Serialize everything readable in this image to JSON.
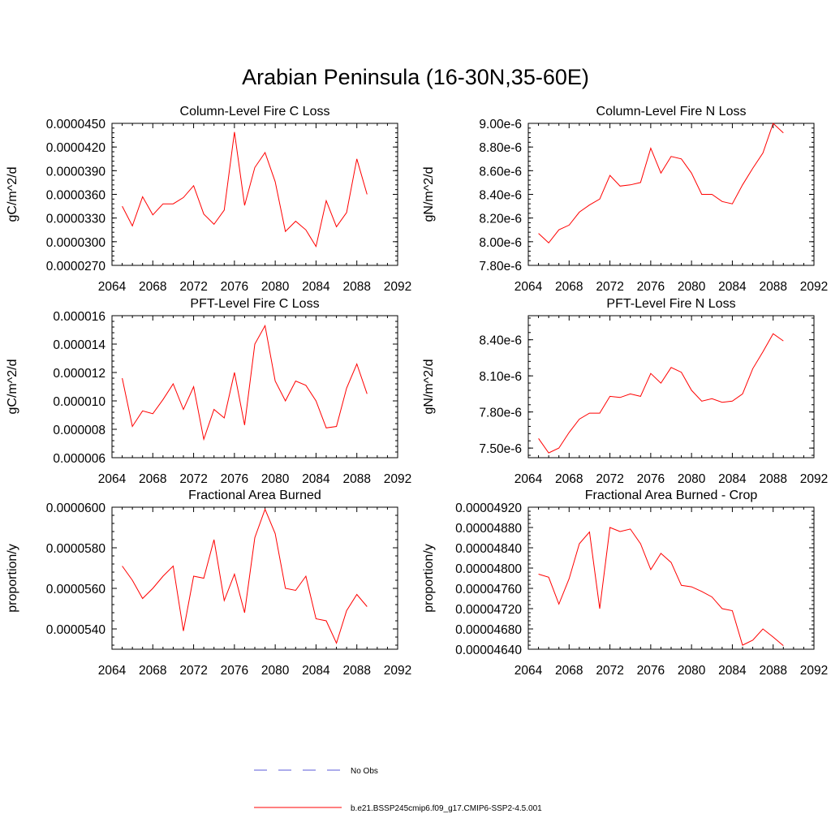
{
  "title": "Arabian Peninsula (16-30N,35-60E)",
  "colors": {
    "series": "#ff0000",
    "no_obs": "#5a5ad8",
    "axis": "#000000"
  },
  "legend": [
    {
      "label": "No Obs",
      "style": "dashed",
      "color": "#5a5ad8"
    },
    {
      "label": "b.e21.BSSP245cmip6.f09_g17.CMIP6-SSP2-4.5.001",
      "style": "solid",
      "color": "#ff0000"
    }
  ],
  "chart_data": [
    {
      "type": "line",
      "title": "Column-Level Fire C Loss",
      "ylabel": "gC/m^2/d",
      "xlim": [
        2064,
        2092
      ],
      "ylim": [
        2.7e-05,
        4.5e-05
      ],
      "xticks": [
        "2064",
        "2068",
        "2072",
        "2076",
        "2080",
        "2084",
        "2088",
        "2092"
      ],
      "yticks": [
        "0.0000270",
        "0.0000300",
        "0.0000330",
        "0.0000360",
        "0.0000390",
        "0.0000420",
        "0.0000450"
      ],
      "series": [
        {
          "x": [
            2065,
            2066,
            2067,
            2068,
            2069,
            2070,
            2071,
            2072,
            2073,
            2074,
            2075,
            2076,
            2077,
            2078,
            2079,
            2080,
            2081,
            2082,
            2083,
            2084,
            2085,
            2086,
            2087,
            2088,
            2089
          ],
          "values": [
            3.45e-05,
            3.2e-05,
            3.57e-05,
            3.34e-05,
            3.48e-05,
            3.48e-05,
            3.56e-05,
            3.71e-05,
            3.35e-05,
            3.22e-05,
            3.4e-05,
            4.39e-05,
            3.46e-05,
            3.94e-05,
            4.13e-05,
            3.76e-05,
            3.13e-05,
            3.26e-05,
            3.15e-05,
            2.94e-05,
            3.52e-05,
            3.19e-05,
            3.37e-05,
            4.05e-05,
            3.6e-05
          ]
        }
      ]
    },
    {
      "type": "line",
      "title": "Column-Level Fire N Loss",
      "ylabel": "gN/m^2/d",
      "xlim": [
        2064,
        2092
      ],
      "ylim": [
        7.8e-06,
        9e-06
      ],
      "xticks": [
        "2064",
        "2068",
        "2072",
        "2076",
        "2080",
        "2084",
        "2088",
        "2092"
      ],
      "yticks": [
        "7.80e-6",
        "8.00e-6",
        "8.20e-6",
        "8.40e-6",
        "8.60e-6",
        "8.80e-6",
        "9.00e-6"
      ],
      "series": [
        {
          "x": [
            2065,
            2066,
            2067,
            2068,
            2069,
            2070,
            2071,
            2072,
            2073,
            2074,
            2075,
            2076,
            2077,
            2078,
            2079,
            2080,
            2081,
            2082,
            2083,
            2084,
            2085,
            2086,
            2087,
            2088,
            2089
          ],
          "values": [
            8.07e-06,
            7.99e-06,
            8.1e-06,
            8.14e-06,
            8.25e-06,
            8.31e-06,
            8.36e-06,
            8.56e-06,
            8.47e-06,
            8.48e-06,
            8.5e-06,
            8.79e-06,
            8.58e-06,
            8.72e-06,
            8.7e-06,
            8.58e-06,
            8.4e-06,
            8.4e-06,
            8.34e-06,
            8.32e-06,
            8.48e-06,
            8.62e-06,
            8.75e-06,
            9e-06,
            8.92e-06
          ]
        }
      ]
    },
    {
      "type": "line",
      "title": "PFT-Level Fire C Loss",
      "ylabel": "gC/m^2/d",
      "xlim": [
        2064,
        2092
      ],
      "ylim": [
        6e-06,
        1.6e-05
      ],
      "xticks": [
        "2064",
        "2068",
        "2072",
        "2076",
        "2080",
        "2084",
        "2088",
        "2092"
      ],
      "yticks": [
        "0.000006",
        "0.000008",
        "0.000010",
        "0.000012",
        "0.000014",
        "0.000016"
      ],
      "series": [
        {
          "x": [
            2065,
            2066,
            2067,
            2068,
            2069,
            2070,
            2071,
            2072,
            2073,
            2074,
            2075,
            2076,
            2077,
            2078,
            2079,
            2080,
            2081,
            2082,
            2083,
            2084,
            2085,
            2086,
            2087,
            2088,
            2089
          ],
          "values": [
            1.16e-05,
            8.2e-06,
            9.3e-06,
            9.1e-06,
            1.01e-05,
            1.12e-05,
            9.4e-06,
            1.1e-05,
            7.3e-06,
            9.4e-06,
            8.8e-06,
            1.2e-05,
            8.3e-06,
            1.4e-05,
            1.53e-05,
            1.14e-05,
            1e-05,
            1.14e-05,
            1.11e-05,
            1e-05,
            8.1e-06,
            8.2e-06,
            1.09e-05,
            1.26e-05,
            1.05e-05
          ]
        }
      ]
    },
    {
      "type": "line",
      "title": "PFT-Level Fire N Loss",
      "ylabel": "gN/m^2/d",
      "xlim": [
        2064,
        2092
      ],
      "ylim": [
        7.42e-06,
        8.6e-06
      ],
      "xticks": [
        "2064",
        "2068",
        "2072",
        "2076",
        "2080",
        "2084",
        "2088",
        "2092"
      ],
      "yticks": [
        "7.50e-6",
        "7.80e-6",
        "8.10e-6",
        "8.40e-6"
      ],
      "series": [
        {
          "x": [
            2065,
            2066,
            2067,
            2068,
            2069,
            2070,
            2071,
            2072,
            2073,
            2074,
            2075,
            2076,
            2077,
            2078,
            2079,
            2080,
            2081,
            2082,
            2083,
            2084,
            2085,
            2086,
            2087,
            2088,
            2089
          ],
          "values": [
            7.58e-06,
            7.46e-06,
            7.5e-06,
            7.63e-06,
            7.74e-06,
            7.79e-06,
            7.79e-06,
            7.93e-06,
            7.92e-06,
            7.95e-06,
            7.93e-06,
            8.12e-06,
            8.04e-06,
            8.17e-06,
            8.13e-06,
            7.98e-06,
            7.89e-06,
            7.91e-06,
            7.88e-06,
            7.89e-06,
            7.95e-06,
            8.16e-06,
            8.3e-06,
            8.45e-06,
            8.39e-06
          ]
        }
      ]
    },
    {
      "type": "line",
      "title": "Fractional Area Burned",
      "ylabel": "proportion/y",
      "xlim": [
        2064,
        2092
      ],
      "ylim": [
        5.3e-05,
        6e-05
      ],
      "xticks": [
        "2064",
        "2068",
        "2072",
        "2076",
        "2080",
        "2084",
        "2088",
        "2092"
      ],
      "yticks": [
        "0.0000540",
        "0.0000560",
        "0.0000580",
        "0.0000600"
      ],
      "series": [
        {
          "x": [
            2065,
            2066,
            2067,
            2068,
            2069,
            2070,
            2071,
            2072,
            2073,
            2074,
            2075,
            2076,
            2077,
            2078,
            2079,
            2080,
            2081,
            2082,
            2083,
            2084,
            2085,
            2086,
            2087,
            2088,
            2089
          ],
          "values": [
            5.71e-05,
            5.64e-05,
            5.55e-05,
            5.6e-05,
            5.66e-05,
            5.71e-05,
            5.39e-05,
            5.66e-05,
            5.65e-05,
            5.84e-05,
            5.54e-05,
            5.67e-05,
            5.48e-05,
            5.85e-05,
            5.99e-05,
            5.87e-05,
            5.6e-05,
            5.59e-05,
            5.66e-05,
            5.45e-05,
            5.44e-05,
            5.33e-05,
            5.49e-05,
            5.57e-05,
            5.51e-05
          ]
        }
      ]
    },
    {
      "type": "line",
      "title": "Fractional Area Burned - Crop",
      "ylabel": "proportion/y",
      "xlim": [
        2064,
        2092
      ],
      "ylim": [
        4.64e-05,
        4.92e-05
      ],
      "xticks": [
        "2064",
        "2068",
        "2072",
        "2076",
        "2080",
        "2084",
        "2088",
        "2092"
      ],
      "yticks": [
        "0.00004640",
        "0.00004680",
        "0.00004720",
        "0.00004760",
        "0.00004800",
        "0.00004840",
        "0.00004880",
        "0.00004920"
      ],
      "series": [
        {
          "x": [
            2065,
            2066,
            2067,
            2068,
            2069,
            2070,
            2071,
            2072,
            2073,
            2074,
            2075,
            2076,
            2077,
            2078,
            2079,
            2080,
            2081,
            2082,
            2083,
            2084,
            2085,
            2086,
            2087,
            2088,
            2089
          ],
          "values": [
            4.788e-05,
            4.782e-05,
            4.729e-05,
            4.779e-05,
            4.848e-05,
            4.871e-05,
            4.72e-05,
            4.88e-05,
            4.872e-05,
            4.877e-05,
            4.848e-05,
            4.797e-05,
            4.829e-05,
            4.811e-05,
            4.766e-05,
            4.763e-05,
            4.754e-05,
            4.743e-05,
            4.72e-05,
            4.716e-05,
            4.648e-05,
            4.658e-05,
            4.68e-05,
            4.664e-05,
            4.647e-05
          ]
        }
      ]
    }
  ]
}
